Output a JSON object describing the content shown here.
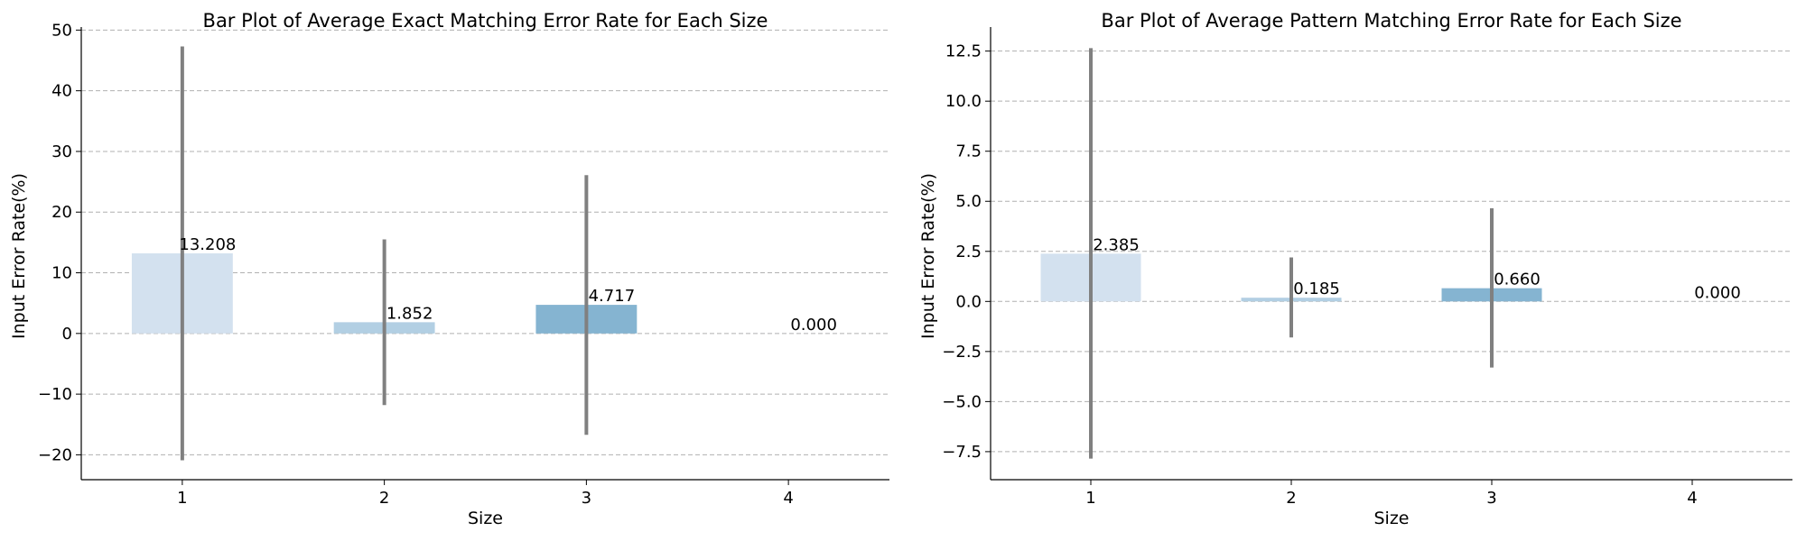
{
  "chart_data": [
    {
      "type": "bar",
      "title": "Bar Plot of Average Exact Matching Error Rate for Each Size",
      "xlabel": "Size",
      "ylabel": "Input Error Rate(%)",
      "categories": [
        "1",
        "2",
        "3",
        "4"
      ],
      "values": [
        13.208,
        1.852,
        4.717,
        0.0
      ],
      "value_labels": [
        "13.208",
        "1.852",
        "4.717",
        "0.000"
      ],
      "error_bars": [
        [
          -20.9,
          47.3
        ],
        [
          -11.8,
          15.5
        ],
        [
          -16.7,
          26.1
        ],
        [
          0,
          0
        ]
      ],
      "ylim": [
        -24.1,
        50.5
      ],
      "yticks": [
        -20,
        -10,
        0,
        10,
        20,
        30,
        40,
        50
      ],
      "ytick_labels": [
        "−20",
        "−10",
        "0",
        "10",
        "20",
        "30",
        "40",
        "50"
      ],
      "grid": "y, dashed",
      "colors": [
        "#d3e1ef",
        "#b2cfe3",
        "#85b4d1",
        "#4f8dbd"
      ],
      "error_color": "#808080"
    },
    {
      "type": "bar",
      "title": "Bar Plot of Average Pattern Matching Error Rate for Each Size",
      "xlabel": "Size",
      "ylabel": "Input Error Rate(%)",
      "categories": [
        "1",
        "2",
        "3",
        "4"
      ],
      "values": [
        2.385,
        0.185,
        0.66,
        0.0
      ],
      "value_labels": [
        "2.385",
        "0.185",
        "0.660",
        "0.000"
      ],
      "error_bars": [
        [
          -7.85,
          12.65
        ],
        [
          -1.8,
          2.2
        ],
        [
          -3.3,
          4.65
        ],
        [
          0,
          0
        ]
      ],
      "ylim": [
        -8.9,
        13.7
      ],
      "yticks": [
        -7.5,
        -5.0,
        -2.5,
        0.0,
        2.5,
        5.0,
        7.5,
        10.0,
        12.5
      ],
      "ytick_labels": [
        "−7.5",
        "−5.0",
        "−2.5",
        "0.0",
        "2.5",
        "5.0",
        "7.5",
        "10.0",
        "12.5"
      ],
      "grid": "y, dashed",
      "colors": [
        "#d3e1ef",
        "#b2cfe3",
        "#85b4d1",
        "#4f8dbd"
      ],
      "error_color": "#808080"
    }
  ]
}
